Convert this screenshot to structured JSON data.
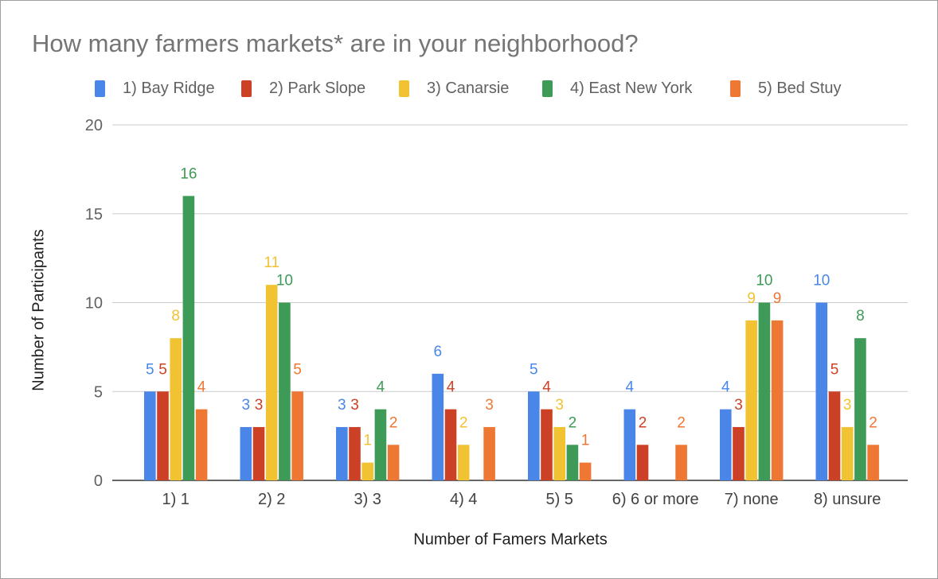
{
  "chart_data": {
    "type": "bar",
    "title": "How many farmers markets* are in your neighborhood?",
    "xlabel": "Number of Famers Markets",
    "ylabel": "Number of Participants",
    "categories": [
      "1) 1",
      "2) 2",
      "3) 3",
      "4) 4",
      "5) 5",
      "6) 6 or more",
      "7) none",
      "8) unsure"
    ],
    "ylim": [
      0,
      20
    ],
    "yticks": [
      0,
      5,
      10,
      15,
      20
    ],
    "grid": true,
    "legend_position": "top",
    "series": [
      {
        "name": "1) Bay Ridge",
        "color": "#4a86e8",
        "values": [
          5,
          3,
          3,
          6,
          5,
          4,
          4,
          10
        ]
      },
      {
        "name": "2) Park Slope",
        "color": "#cc4125",
        "values": [
          5,
          3,
          3,
          4,
          4,
          2,
          3,
          5
        ]
      },
      {
        "name": "3) Canarsie",
        "color": "#f1c232",
        "values": [
          8,
          11,
          1,
          2,
          3,
          null,
          9,
          3
        ]
      },
      {
        "name": "4) East New York",
        "color": "#3d9a57",
        "values": [
          16,
          10,
          4,
          null,
          2,
          null,
          10,
          8
        ]
      },
      {
        "name": "5) Bed Stuy",
        "color": "#ee7733",
        "values": [
          4,
          5,
          2,
          3,
          1,
          2,
          9,
          2
        ]
      }
    ]
  }
}
